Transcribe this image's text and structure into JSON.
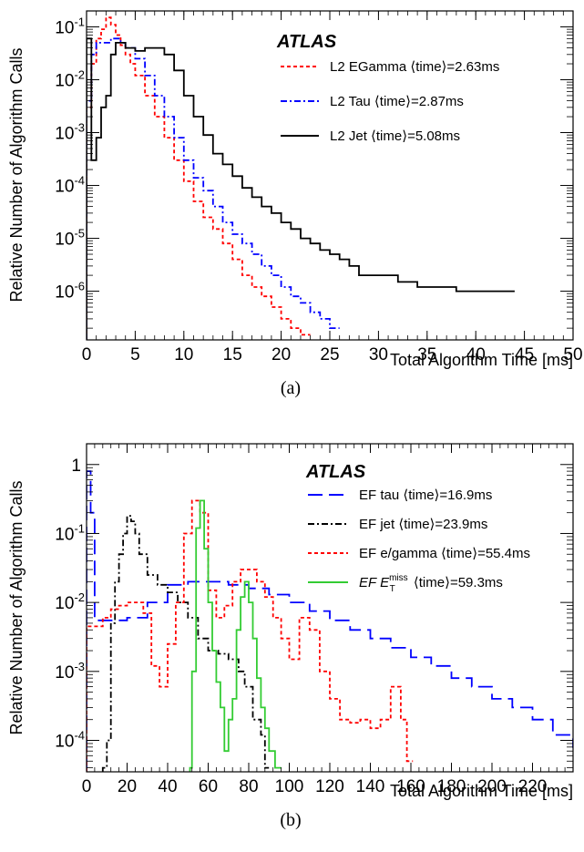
{
  "chart_data": [
    {
      "type": "line",
      "panel_label": "(a)",
      "watermark": "ATLAS",
      "xlabel": "Total Algorithm Time [ms]",
      "ylabel": "Relative Number of Algorithm Calls",
      "xlim": [
        0,
        50
      ],
      "ylim": [
        1.2e-07,
        0.2
      ],
      "yscale": "log",
      "xticks": [
        "0",
        "5",
        "10",
        "15",
        "20",
        "25",
        "30",
        "35",
        "40",
        "45",
        "50"
      ],
      "yticks": [
        {
          "base": "10",
          "exp": "-1"
        },
        {
          "base": "10",
          "exp": "-2"
        },
        {
          "base": "10",
          "exp": "-3"
        },
        {
          "base": "10",
          "exp": "-4"
        },
        {
          "base": "10",
          "exp": "-5"
        },
        {
          "base": "10",
          "exp": "-6"
        }
      ],
      "legend_position": "top-right",
      "series": [
        {
          "name": "L2 EGamma",
          "mean_label": "⟨time⟩=2.63ms",
          "color": "#ff0000",
          "style": "dotted",
          "x": [
            0,
            0.5,
            1,
            1.5,
            2,
            2.5,
            3,
            3.5,
            4,
            4.5,
            5,
            6,
            7,
            8,
            9,
            10,
            11,
            12,
            13,
            14,
            15,
            16,
            17,
            18,
            19,
            20,
            21,
            22
          ],
          "y": [
            0.003,
            0.02,
            0.06,
            0.09,
            0.15,
            0.11,
            0.07,
            0.045,
            0.03,
            0.02,
            0.012,
            0.005,
            0.002,
            0.0008,
            0.0003,
            0.00012,
            5e-05,
            2.5e-05,
            1.5e-05,
            8e-06,
            4e-06,
            2e-06,
            1.2e-06,
            8e-07,
            5e-07,
            3e-07,
            2e-07,
            1.5e-07
          ]
        },
        {
          "name": "L2 Tau",
          "mean_label": "⟨time⟩=2.87ms",
          "color": "#0000ff",
          "style": "dash-dot",
          "x": [
            0,
            0.5,
            1,
            1.5,
            2,
            2.5,
            3,
            3.5,
            4,
            5,
            6,
            7,
            8,
            9,
            10,
            11,
            12,
            13,
            14,
            15,
            16,
            17,
            18,
            19,
            20,
            21,
            22,
            23,
            24,
            25
          ],
          "y": [
            0.004,
            0.03,
            0.05,
            0.05,
            0.05,
            0.06,
            0.06,
            0.05,
            0.04,
            0.025,
            0.012,
            0.005,
            0.002,
            0.0008,
            0.0003,
            0.00014,
            8e-05,
            4e-05,
            2e-05,
            1.2e-05,
            8e-06,
            5e-06,
            3e-06,
            2e-06,
            1.2e-06,
            8e-07,
            6e-07,
            4e-07,
            3e-07,
            2e-07
          ]
        },
        {
          "name": "L2 Jet",
          "mean_label": "⟨time⟩=5.08ms",
          "color": "#000000",
          "style": "solid",
          "x": [
            0,
            0.5,
            1,
            1.5,
            2,
            2.5,
            3,
            4,
            5,
            6,
            7,
            8,
            9,
            10,
            11,
            12,
            13,
            14,
            15,
            16,
            17,
            18,
            19,
            20,
            21,
            22,
            23,
            24,
            25,
            26,
            27,
            28,
            30,
            32,
            34,
            38,
            41
          ],
          "y": [
            0.06,
            0.0003,
            0.0008,
            0.003,
            0.005,
            0.03,
            0.05,
            0.04,
            0.035,
            0.04,
            0.04,
            0.03,
            0.015,
            0.005,
            0.002,
            0.0009,
            0.0004,
            0.00025,
            0.00015,
            9e-05,
            6e-05,
            4e-05,
            3e-05,
            2e-05,
            1.5e-05,
            1e-05,
            8e-06,
            6e-06,
            5e-06,
            4e-06,
            3e-06,
            2e-06,
            2e-06,
            1.5e-06,
            1.2e-06,
            1e-06,
            1e-06
          ]
        }
      ]
    },
    {
      "type": "line",
      "panel_label": "(b)",
      "watermark": "ATLAS",
      "xlabel": "Total Algorithm Time [ms]",
      "ylabel": "Relative Number of Algorithm Calls",
      "xlim": [
        0,
        240
      ],
      "ylim": [
        3.5e-05,
        2.0
      ],
      "yscale": "log",
      "xticks": [
        "0",
        "20",
        "40",
        "60",
        "80",
        "100",
        "120",
        "140",
        "160",
        "180",
        "200",
        "220"
      ],
      "yticks": [
        {
          "base": "1",
          "exp": ""
        },
        {
          "base": "10",
          "exp": "-1"
        },
        {
          "base": "10",
          "exp": "-2"
        },
        {
          "base": "10",
          "exp": "-3"
        },
        {
          "base": "10",
          "exp": "-4"
        }
      ],
      "legend_position": "top-right",
      "series": [
        {
          "name": "EF tau",
          "mean_label": "⟨time⟩=16.9ms",
          "color": "#0000ff",
          "style": "long-dash",
          "x": [
            0,
            2,
            4,
            6,
            10,
            20,
            30,
            40,
            50,
            60,
            70,
            80,
            90,
            100,
            110,
            120,
            130,
            140,
            150,
            160,
            170,
            180,
            190,
            200,
            210,
            220,
            230,
            240
          ],
          "y": [
            0.8,
            0.2,
            0.0055,
            0.0055,
            0.0055,
            0.006,
            0.01,
            0.018,
            0.02,
            0.02,
            0.018,
            0.016,
            0.013,
            0.01,
            0.0075,
            0.0055,
            0.004,
            0.003,
            0.0022,
            0.0016,
            0.0012,
            0.0008,
            0.0006,
            0.0004,
            0.0003,
            0.0002,
            0.00012,
            8e-05
          ]
        },
        {
          "name": "EF jet",
          "mean_label": "⟨time⟩=23.9ms",
          "color": "#000000",
          "style": "dash-dot",
          "x": [
            8,
            10,
            12,
            14,
            16,
            18,
            20,
            22,
            24,
            26,
            30,
            35,
            40,
            45,
            50,
            55,
            60,
            65,
            70,
            75,
            78,
            82,
            86,
            88
          ],
          "y": [
            4e-05,
            0.0001,
            0.005,
            0.02,
            0.05,
            0.1,
            0.18,
            0.15,
            0.1,
            0.05,
            0.025,
            0.018,
            0.014,
            0.01,
            0.006,
            0.003,
            0.002,
            0.0018,
            0.0015,
            0.001,
            0.0006,
            0.0002,
            0.00012,
            4e-05
          ]
        },
        {
          "name": "EF e/gamma",
          "mean_label": "⟨time⟩=55.4ms",
          "color": "#ff0000",
          "style": "dotted",
          "x": [
            0,
            4,
            8,
            12,
            16,
            20,
            24,
            28,
            32,
            36,
            40,
            44,
            48,
            52,
            56,
            60,
            64,
            68,
            72,
            76,
            80,
            84,
            88,
            92,
            96,
            100,
            105,
            110,
            115,
            120,
            125,
            130,
            135,
            140,
            145,
            150,
            155,
            158
          ],
          "y": [
            0.0045,
            0.0045,
            0.006,
            0.008,
            0.009,
            0.01,
            0.01,
            0.007,
            0.0012,
            0.0006,
            0.0025,
            0.01,
            0.1,
            0.3,
            0.2,
            0.015,
            0.006,
            0.009,
            0.02,
            0.03,
            0.03,
            0.02,
            0.012,
            0.006,
            0.003,
            0.0015,
            0.006,
            0.004,
            0.001,
            0.0004,
            0.0002,
            0.00018,
            0.0002,
            0.00015,
            0.0002,
            0.0006,
            0.0002,
            5e-05
          ]
        },
        {
          "name": "EF ETmiss",
          "name_main": "EF  E",
          "name_sup": "miss",
          "name_sub": "T",
          "mean_label": "⟨time⟩=59.3ms",
          "color": "#33cc33",
          "style": "solid",
          "x": [
            51,
            52,
            54,
            56,
            58,
            60,
            62,
            64,
            66,
            68,
            70,
            72,
            74,
            76,
            78,
            80,
            82,
            84,
            86,
            88,
            90,
            93
          ],
          "y": [
            4e-05,
            0.001,
            0.12,
            0.3,
            0.06,
            0.01,
            0.002,
            0.0007,
            0.0003,
            7e-05,
            0.0002,
            0.0004,
            0.004,
            0.012,
            0.02,
            0.01,
            0.003,
            0.0008,
            0.0003,
            0.00015,
            7e-05,
            4e-05
          ]
        }
      ]
    }
  ],
  "colors": {
    "egamma": "#ff0000",
    "tau": "#0000ff",
    "jet": "#000000",
    "met": "#33cc33"
  }
}
